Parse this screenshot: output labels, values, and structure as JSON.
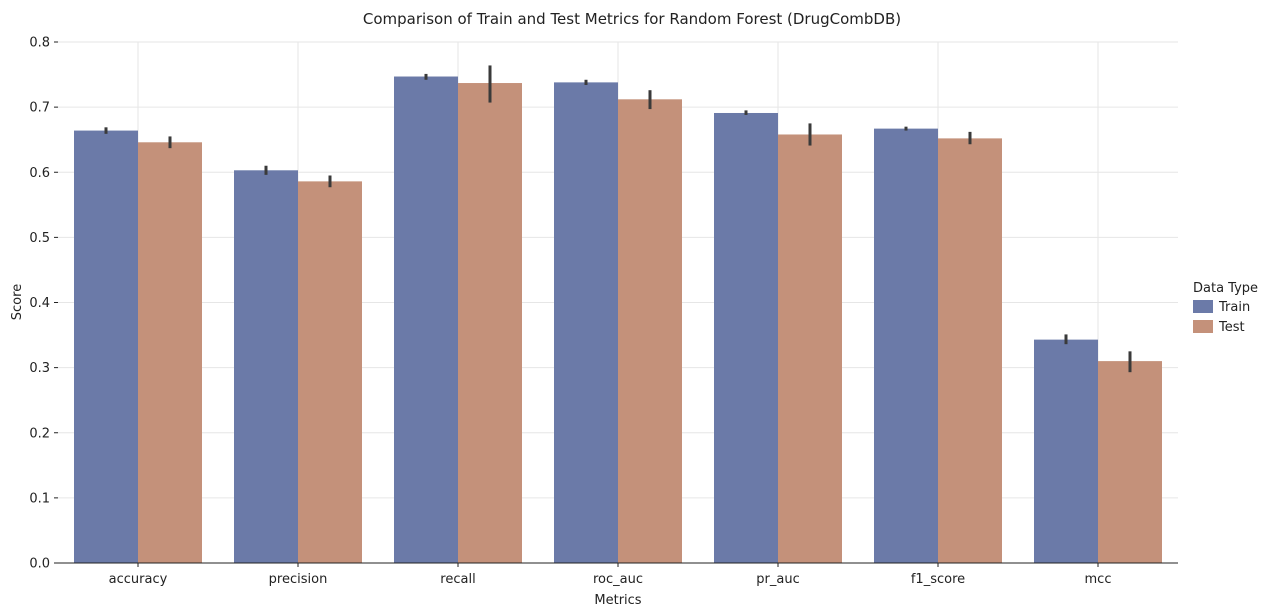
{
  "chart_data": {
    "type": "bar",
    "title": "Comparison of Train and Test Metrics for Random Forest (DrugCombDB)",
    "xlabel": "Metrics",
    "ylabel": "Score",
    "categories": [
      "accuracy",
      "precision",
      "recall",
      "roc_auc",
      "pr_auc",
      "f1_score",
      "mcc"
    ],
    "ylim": [
      0,
      0.8
    ],
    "yticks": [
      "0.0",
      "0.1",
      "0.2",
      "0.3",
      "0.4",
      "0.5",
      "0.6",
      "0.7",
      "0.8"
    ],
    "grid": true,
    "legend": {
      "title": "Data Type",
      "position": "right"
    },
    "series": [
      {
        "name": "Train",
        "color": "#6b7aa8",
        "values": [
          0.664,
          0.603,
          0.747,
          0.738,
          0.691,
          0.667,
          0.343
        ],
        "err_low": [
          0.659,
          0.596,
          0.742,
          0.734,
          0.688,
          0.664,
          0.336
        ],
        "err_high": [
          0.669,
          0.61,
          0.751,
          0.742,
          0.695,
          0.67,
          0.351
        ]
      },
      {
        "name": "Test",
        "color": "#c4917a",
        "values": [
          0.646,
          0.586,
          0.737,
          0.712,
          0.658,
          0.652,
          0.31
        ],
        "err_low": [
          0.637,
          0.577,
          0.707,
          0.697,
          0.641,
          0.643,
          0.293
        ],
        "err_high": [
          0.655,
          0.595,
          0.764,
          0.726,
          0.675,
          0.662,
          0.325
        ]
      }
    ]
  }
}
